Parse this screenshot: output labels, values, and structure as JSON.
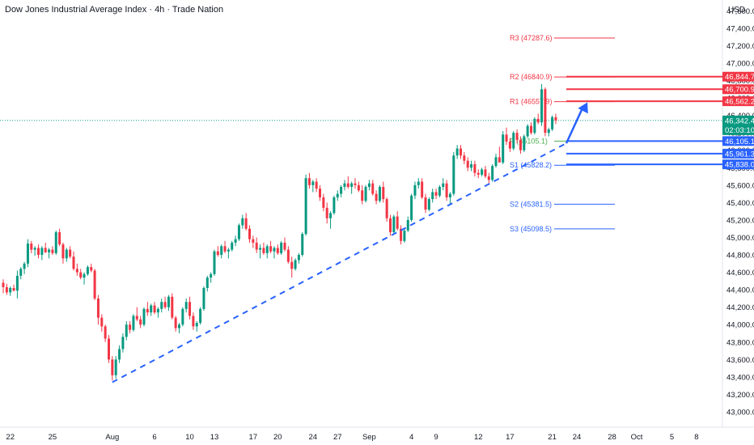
{
  "header": {
    "title": "Dow Jones Industrial Average Index · 4h · Trade Nation",
    "currency": "USD"
  },
  "colors": {
    "up": "#089981",
    "down": "#f23645",
    "resistance": "#f23645",
    "support": "#2962ff",
    "pivot": "#4caf50",
    "trendline": "#2962ff",
    "current_price_tag": "#089981"
  },
  "chart_data": {
    "type": "candlestick",
    "title": "Dow Jones Industrial Average Index · 4h · Trade Nation",
    "ylim": [
      42800,
      47800
    ],
    "y_ticks": [
      43000,
      43200,
      43400,
      43600,
      43800,
      44000,
      44200,
      44400,
      44600,
      44800,
      45000,
      45200,
      45400,
      45600,
      45800,
      46000,
      46200,
      46400,
      46600,
      46800,
      47000,
      47200,
      47400,
      47600
    ],
    "y_tick_labels": [
      "43,000.0",
      "43,200.0",
      "43,400.0",
      "43,600.0",
      "43,800.0",
      "44,000.0",
      "44,200.0",
      "44,400.0",
      "44,600.0",
      "44,800.0",
      "45,000.0",
      "45,200.0",
      "45,400.0",
      "45,600.0",
      "45,800.0",
      "46,000.0",
      "46,200.0",
      "46,400.0",
      "46,600.0",
      "46,800.0",
      "47,000.0",
      "47,200.0",
      "47,400.0",
      "47,600.0"
    ],
    "x_ticks": [
      {
        "label": "22",
        "bar": 2
      },
      {
        "label": "25",
        "bar": 14
      },
      {
        "label": "Aug",
        "bar": 31
      },
      {
        "label": "6",
        "bar": 43
      },
      {
        "label": "10",
        "bar": 53
      },
      {
        "label": "13",
        "bar": 60
      },
      {
        "label": "17",
        "bar": 71
      },
      {
        "label": "20",
        "bar": 78
      },
      {
        "label": "24",
        "bar": 88
      },
      {
        "label": "27",
        "bar": 95
      },
      {
        "label": "Sep",
        "bar": 104
      },
      {
        "label": "4",
        "bar": 116
      },
      {
        "label": "9",
        "bar": 123
      },
      {
        "label": "12",
        "bar": 135
      },
      {
        "label": "17",
        "bar": 144
      },
      {
        "label": "21",
        "bar": 156
      },
      {
        "label": "24",
        "bar": 163
      },
      {
        "label": "28",
        "bar": 173
      },
      {
        "label": "Oct",
        "bar": 180
      },
      {
        "label": "5",
        "bar": 190
      },
      {
        "label": "8",
        "bar": 197
      }
    ],
    "bar_count_span": 202,
    "candles": [
      [
        44480,
        44520,
        44360,
        44430
      ],
      [
        44430,
        44470,
        44340,
        44370
      ],
      [
        44370,
        44440,
        44330,
        44420
      ],
      [
        44420,
        44460,
        44380,
        44390
      ],
      [
        44390,
        44620,
        44300,
        44560
      ],
      [
        44560,
        44660,
        44520,
        44640
      ],
      [
        44640,
        44720,
        44580,
        44700
      ],
      [
        44700,
        44980,
        44660,
        44930
      ],
      [
        44930,
        44960,
        44820,
        44860
      ],
      [
        44860,
        44900,
        44790,
        44880
      ],
      [
        44880,
        44920,
        44760,
        44800
      ],
      [
        44800,
        44900,
        44740,
        44880
      ],
      [
        44880,
        44940,
        44820,
        44830
      ],
      [
        44830,
        44880,
        44760,
        44860
      ],
      [
        44860,
        44900,
        44800,
        44820
      ],
      [
        44820,
        45080,
        44800,
        45060
      ],
      [
        45060,
        45100,
        44900,
        44920
      ],
      [
        44920,
        44940,
        44700,
        44760
      ],
      [
        44760,
        44880,
        44720,
        44860
      ],
      [
        44860,
        44900,
        44760,
        44780
      ],
      [
        44780,
        44840,
        44620,
        44640
      ],
      [
        44640,
        44700,
        44560,
        44600
      ],
      [
        44600,
        44640,
        44520,
        44540
      ],
      [
        44540,
        44600,
        44460,
        44580
      ],
      [
        44580,
        44680,
        44560,
        44660
      ],
      [
        44660,
        44700,
        44600,
        44620
      ],
      [
        44620,
        44640,
        44280,
        44300
      ],
      [
        44300,
        44340,
        44000,
        44080
      ],
      [
        44080,
        44120,
        43920,
        43980
      ],
      [
        43980,
        44000,
        43800,
        43840
      ],
      [
        43840,
        43880,
        43560,
        43600
      ],
      [
        43600,
        43640,
        43360,
        43420
      ],
      [
        43420,
        43640,
        43380,
        43600
      ],
      [
        43600,
        43760,
        43560,
        43720
      ],
      [
        43720,
        43900,
        43680,
        43860
      ],
      [
        43860,
        44040,
        43820,
        44000
      ],
      [
        44000,
        44040,
        43900,
        43940
      ],
      [
        43940,
        44120,
        43920,
        44100
      ],
      [
        44100,
        44200,
        44040,
        44060
      ],
      [
        44060,
        44100,
        43960,
        44000
      ],
      [
        44000,
        44200,
        43980,
        44180
      ],
      [
        44180,
        44260,
        44100,
        44140
      ],
      [
        44140,
        44240,
        44100,
        44220
      ],
      [
        44220,
        44260,
        44120,
        44140
      ],
      [
        44140,
        44200,
        44080,
        44180
      ],
      [
        44180,
        44300,
        44140,
        44260
      ],
      [
        44260,
        44320,
        44180,
        44200
      ],
      [
        44200,
        44340,
        44160,
        44320
      ],
      [
        44320,
        44360,
        44060,
        44080
      ],
      [
        44080,
        44100,
        43920,
        43960
      ],
      [
        43960,
        44020,
        43900,
        44000
      ],
      [
        44000,
        44200,
        43980,
        44180
      ],
      [
        44180,
        44300,
        44140,
        44260
      ],
      [
        44260,
        44320,
        44060,
        44100
      ],
      [
        44100,
        44140,
        43940,
        43980
      ],
      [
        43980,
        44040,
        43920,
        44020
      ],
      [
        44020,
        44200,
        44000,
        44180
      ],
      [
        44180,
        44440,
        44160,
        44420
      ],
      [
        44420,
        44560,
        44380,
        44540
      ],
      [
        44540,
        44600,
        44480,
        44580
      ],
      [
        44580,
        44860,
        44560,
        44840
      ],
      [
        44840,
        44900,
        44780,
        44800
      ],
      [
        44800,
        44920,
        44760,
        44900
      ],
      [
        44900,
        44960,
        44820,
        44840
      ],
      [
        44840,
        44880,
        44760,
        44860
      ],
      [
        44860,
        44960,
        44840,
        44940
      ],
      [
        44940,
        45020,
        44900,
        44980
      ],
      [
        44980,
        45160,
        44960,
        45140
      ],
      [
        45140,
        45260,
        45100,
        45220
      ],
      [
        45220,
        45280,
        45080,
        45100
      ],
      [
        45100,
        45140,
        44940,
        44980
      ],
      [
        44980,
        45020,
        44880,
        44940
      ],
      [
        44940,
        45000,
        44820,
        44860
      ],
      [
        44860,
        44920,
        44760,
        44880
      ],
      [
        44880,
        44940,
        44800,
        44820
      ],
      [
        44820,
        44920,
        44760,
        44900
      ],
      [
        44900,
        44960,
        44820,
        44840
      ],
      [
        44840,
        44900,
        44760,
        44880
      ],
      [
        44880,
        44920,
        44800,
        44820
      ],
      [
        44820,
        44960,
        44800,
        44940
      ],
      [
        44940,
        45000,
        44840,
        44860
      ],
      [
        44860,
        44900,
        44700,
        44720
      ],
      [
        44720,
        44780,
        44540,
        44640
      ],
      [
        44640,
        44760,
        44620,
        44740
      ],
      [
        44740,
        44820,
        44700,
        44800
      ],
      [
        44800,
        45060,
        44780,
        45040
      ],
      [
        45040,
        45720,
        45020,
        45680
      ],
      [
        45680,
        45740,
        45560,
        45600
      ],
      [
        45600,
        45660,
        45520,
        45640
      ],
      [
        45640,
        45680,
        45520,
        45560
      ],
      [
        45560,
        45600,
        45420,
        45460
      ],
      [
        45460,
        45500,
        45300,
        45340
      ],
      [
        45340,
        45400,
        45160,
        45220
      ],
      [
        45220,
        45300,
        45100,
        45280
      ],
      [
        45280,
        45480,
        45260,
        45460
      ],
      [
        45460,
        45540,
        45420,
        45500
      ],
      [
        45500,
        45600,
        45460,
        45580
      ],
      [
        45580,
        45660,
        45540,
        45620
      ],
      [
        45620,
        45700,
        45560,
        45580
      ],
      [
        45580,
        45640,
        45500,
        45620
      ],
      [
        45620,
        45680,
        45560,
        45600
      ],
      [
        45600,
        45640,
        45520,
        45540
      ],
      [
        45540,
        45600,
        45380,
        45420
      ],
      [
        45420,
        45600,
        45400,
        45580
      ],
      [
        45580,
        45660,
        45540,
        45620
      ],
      [
        45620,
        45660,
        45480,
        45500
      ],
      [
        45500,
        45540,
        45380,
        45420
      ],
      [
        45420,
        45600,
        45400,
        45580
      ],
      [
        45580,
        45640,
        45400,
        45440
      ],
      [
        45440,
        45460,
        45180,
        45220
      ],
      [
        45220,
        45260,
        45020,
        45060
      ],
      [
        45060,
        45260,
        45040,
        45240
      ],
      [
        45240,
        45300,
        45080,
        45100
      ],
      [
        45100,
        45140,
        44920,
        44960
      ],
      [
        44960,
        45100,
        44940,
        45080
      ],
      [
        45080,
        45240,
        45060,
        45200
      ],
      [
        45200,
        45500,
        45180,
        45480
      ],
      [
        45480,
        45640,
        45440,
        45600
      ],
      [
        45600,
        45680,
        45560,
        45640
      ],
      [
        45640,
        45680,
        45440,
        45460
      ],
      [
        45460,
        45500,
        45280,
        45320
      ],
      [
        45320,
        45460,
        45300,
        45440
      ],
      [
        45440,
        45560,
        45400,
        45520
      ],
      [
        45520,
        45560,
        45440,
        45480
      ],
      [
        45480,
        45600,
        45460,
        45580
      ],
      [
        45580,
        45680,
        45540,
        45620
      ],
      [
        45620,
        45660,
        45420,
        45460
      ],
      [
        45460,
        45520,
        45380,
        45500
      ],
      [
        45500,
        45980,
        45480,
        45940
      ],
      [
        45940,
        46060,
        45900,
        46020
      ],
      [
        46020,
        46060,
        45900,
        45940
      ],
      [
        45940,
        45980,
        45840,
        45880
      ],
      [
        45880,
        45920,
        45760,
        45800
      ],
      [
        45800,
        45880,
        45760,
        45840
      ],
      [
        45840,
        45880,
        45700,
        45740
      ],
      [
        45740,
        45780,
        45680,
        45720
      ],
      [
        45720,
        45800,
        45700,
        45780
      ],
      [
        45780,
        45820,
        45680,
        45700
      ],
      [
        45700,
        45740,
        45620,
        45660
      ],
      [
        45660,
        45840,
        45640,
        45820
      ],
      [
        45820,
        45960,
        45800,
        45920
      ],
      [
        45920,
        46040,
        45880,
        45860
      ],
      [
        45860,
        46220,
        45840,
        46180
      ],
      [
        46180,
        46260,
        46060,
        46100
      ],
      [
        46100,
        46140,
        45980,
        46020
      ],
      [
        46020,
        46220,
        46000,
        46200
      ],
      [
        46200,
        46240,
        46080,
        46120
      ],
      [
        46120,
        46160,
        45960,
        46000
      ],
      [
        46000,
        46180,
        45980,
        46160
      ],
      [
        46160,
        46300,
        46140,
        46280
      ],
      [
        46280,
        46320,
        46180,
        46200
      ],
      [
        46200,
        46380,
        46180,
        46360
      ],
      [
        46360,
        46420,
        46300,
        46320
      ],
      [
        46320,
        46760,
        46280,
        46700
      ],
      [
        46700,
        46720,
        46160,
        46200
      ],
      [
        46200,
        46260,
        46160,
        46240
      ],
      [
        46240,
        46400,
        46220,
        46380
      ],
      [
        46380,
        46420,
        46300,
        46342
      ]
    ],
    "levels": [
      {
        "label": "R3 (47287.6)",
        "value": 47287.6,
        "kind": "resistance"
      },
      {
        "label": "R2 (46840.9)",
        "value": 46840.9,
        "kind": "resistance"
      },
      {
        "label": "R1 (46557.9)",
        "value": 46557.9,
        "kind": "resistance"
      },
      {
        "label": "P (46105.1)",
        "value": 46105.1,
        "kind": "pivot"
      },
      {
        "label": "S1 (45828.2)",
        "value": 45828.2,
        "kind": "support"
      },
      {
        "label": "S2 (45381.5)",
        "value": 45381.5,
        "kind": "support"
      },
      {
        "label": "S3 (45098.5)",
        "value": 45098.5,
        "kind": "support"
      }
    ],
    "price_tags": [
      {
        "text": "46,844.7",
        "value": 46844.7,
        "kind": "resistance"
      },
      {
        "text": "46,700.9",
        "value": 46700.9,
        "kind": "resistance"
      },
      {
        "text": "46,562.2",
        "value": 46562.2,
        "kind": "resistance"
      },
      {
        "text": "46,342.4",
        "value": 46342.4,
        "kind": "current",
        "countdown": "02:03:10"
      },
      {
        "text": "46,105.1",
        "value": 46105.1,
        "kind": "support"
      },
      {
        "text": "45,961.3",
        "value": 45961.3,
        "kind": "support"
      },
      {
        "text": "45,838.0",
        "value": 45838.0,
        "kind": "support"
      }
    ],
    "current_price": 46342.4,
    "trendline": {
      "from": {
        "bar": 31,
        "value": 43340
      },
      "to": {
        "bar": 160,
        "value": 46080
      }
    },
    "forecast_arrow": {
      "from": {
        "bar": 160,
        "value": 46080
      },
      "to": {
        "bar": 166,
        "value": 46550
      }
    }
  }
}
